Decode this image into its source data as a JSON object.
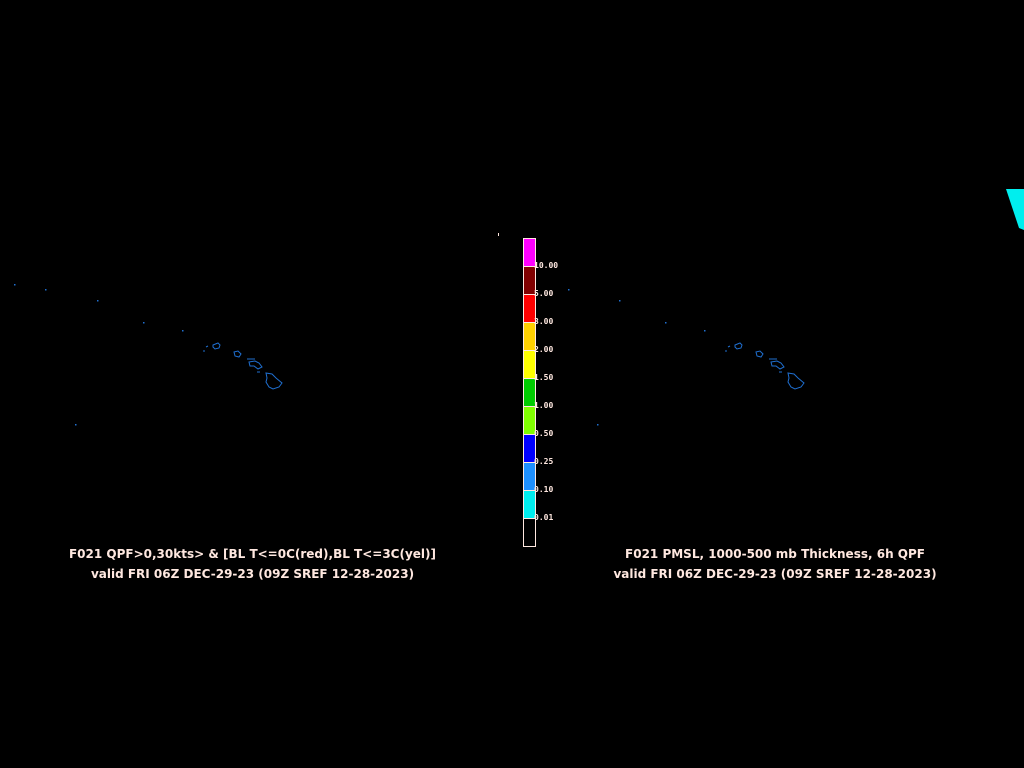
{
  "left_panel": {
    "title_line1": "F021 QPF>0,30kts> & [BL T<=0C(red),BL T<=3C(yel)]",
    "title_line2": "valid FRI 06Z DEC-29-23 (09Z SREF 12-28-2023)"
  },
  "right_panel": {
    "title_line1": "F021 PMSL, 1000-500 mb Thickness, 6h QPF",
    "title_line2": "valid FRI 06Z DEC-29-23 (09Z SREF 12-28-2023)"
  },
  "colorbar": {
    "colors": [
      "#ff00ff",
      "#800000",
      "#ff0000",
      "#ffd000",
      "#ffff00",
      "#00cc00",
      "#80ff00",
      "#0000ff",
      "#1e90ff",
      "#00eeee",
      "#000000"
    ],
    "labels": [
      "10.00",
      "5.00",
      "3.00",
      "2.00",
      "1.50",
      "1.00",
      "0.50",
      "0.25",
      "0.10",
      "0.01"
    ]
  },
  "colors": {
    "coastline": "#1f6fd0",
    "text": "#ffe8e0",
    "qpf_cyan": "#00eeee"
  }
}
